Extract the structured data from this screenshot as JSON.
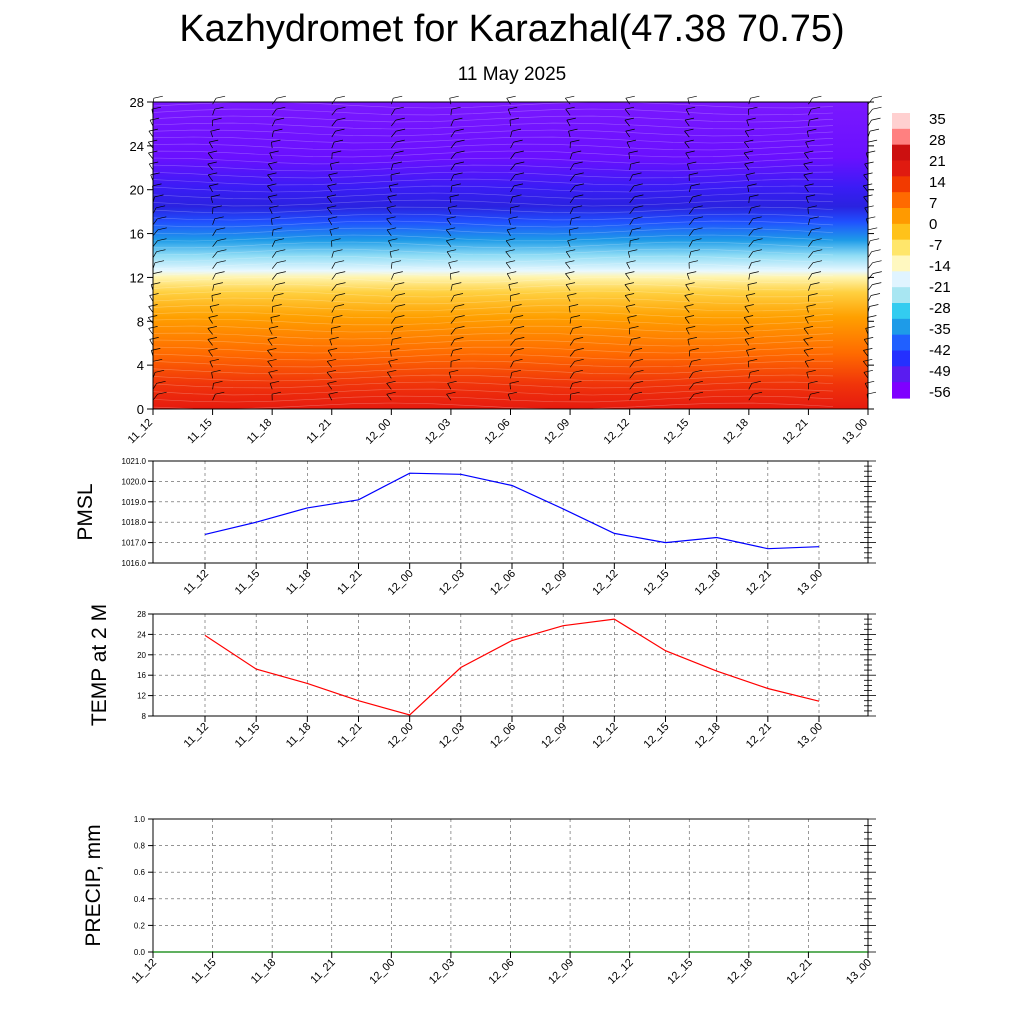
{
  "title": "Kazhydromet for Karazhal(47.38 70.75)",
  "subtitle": "11 May 2025",
  "time_labels": [
    "11_12",
    "11_15",
    "11_18",
    "11_21",
    "12_00",
    "12_03",
    "12_06",
    "12_09",
    "12_12",
    "12_15",
    "12_18",
    "12_21",
    "13_00"
  ],
  "colors": {
    "pmsl_line": "#0000ff",
    "temp_line": "#ff0000",
    "precip_line": "#008000",
    "grid": "#555555",
    "barb": "#000000"
  },
  "chart_data": [
    {
      "type": "heatmap",
      "name": "cross-section",
      "y_ticks": [
        "0",
        "4",
        "8",
        "12",
        "16",
        "20",
        "24",
        "28"
      ],
      "ylim": [
        0,
        28
      ],
      "colorbar_labels": [
        "35",
        "28",
        "21",
        "14",
        "7",
        "0",
        "-7",
        "-14",
        "-21",
        "-28",
        "-35",
        "-42",
        "-49",
        "-56"
      ],
      "colorbar_range": [
        -63,
        42
      ],
      "colorbar_colors": [
        "#7f00ff",
        "#5a1cf0",
        "#2430ff",
        "#2060ff",
        "#1e9be8",
        "#33ccf0",
        "#a8e6f2",
        "#e0f4ff",
        "#fff8c0",
        "#ffe66b",
        "#ffc21a",
        "#ff9a00",
        "#ff6a00",
        "#f23a00",
        "#e01a10",
        "#cc1010",
        "#ff8080",
        "#ffd0d0"
      ],
      "levels": [
        0,
        4,
        8,
        12,
        16,
        20,
        24,
        28
      ],
      "temperature_profile": [
        33,
        22,
        12,
        2,
        -28,
        -56,
        -52,
        -50
      ],
      "notes": "wind barbs overlaid"
    },
    {
      "type": "line",
      "ylabel": "PMSL",
      "ylim": [
        1016.0,
        1021.0
      ],
      "y_ticks": [
        "1016.0",
        "1017.0",
        "1018.0",
        "1019.0",
        "1020.0",
        "1021.0"
      ],
      "categories": [
        "11_12",
        "11_15",
        "11_18",
        "11_21",
        "12_00",
        "12_03",
        "12_06",
        "12_09",
        "12_12",
        "12_15",
        "12_18",
        "12_21",
        "13_00"
      ],
      "values": [
        1017.4,
        1018.0,
        1018.7,
        1019.1,
        1020.4,
        1020.35,
        1019.8,
        1018.65,
        1017.45,
        1017.0,
        1017.25,
        1016.7,
        1016.8
      ]
    },
    {
      "type": "line",
      "ylabel": "TEMP at 2 M",
      "ylim": [
        8,
        28
      ],
      "y_ticks": [
        "8",
        "12",
        "16",
        "20",
        "24",
        "28"
      ],
      "categories": [
        "11_12",
        "11_15",
        "11_18",
        "11_21",
        "12_00",
        "12_03",
        "12_06",
        "12_09",
        "12_12",
        "12_15",
        "12_18",
        "12_21",
        "13_00"
      ],
      "values": [
        23.8,
        17.2,
        14.4,
        11.0,
        8.2,
        17.5,
        22.8,
        25.7,
        27.0,
        20.8,
        16.8,
        13.4,
        10.9
      ]
    },
    {
      "type": "line",
      "ylabel": "PRECIP, mm",
      "ylim": [
        0.0,
        1.0
      ],
      "y_ticks": [
        "0.0",
        "0.2",
        "0.4",
        "0.6",
        "0.8",
        "1.0"
      ],
      "categories": [
        "11_12",
        "11_15",
        "11_18",
        "11_21",
        "12_00",
        "12_03",
        "12_06",
        "12_09",
        "12_12",
        "12_15",
        "12_18",
        "12_21",
        "13_00"
      ],
      "values": [
        0,
        0,
        0,
        0,
        0,
        0,
        0,
        0,
        0,
        0,
        0,
        0,
        0
      ]
    }
  ]
}
